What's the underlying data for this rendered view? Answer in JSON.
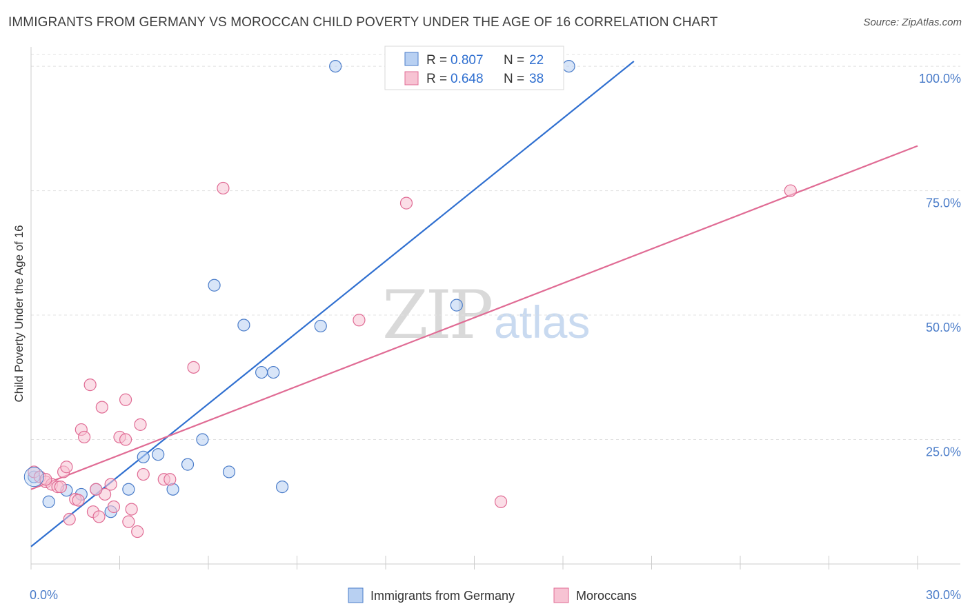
{
  "title": "IMMIGRANTS FROM GERMANY VS MOROCCAN CHILD POVERTY UNDER THE AGE OF 16 CORRELATION CHART",
  "source": "Source: ZipAtlas.com",
  "watermark": {
    "zip": "ZIP",
    "atlas": "atlas"
  },
  "colors": {
    "blue": "#4a7cc9",
    "blue_fill": "#b8d0f2",
    "blue_line": "#2f6fd0",
    "pink": "#e06b94",
    "pink_fill": "#f7c3d3",
    "grid": "#e1e1e1"
  },
  "chart_data": {
    "type": "scatter",
    "title": "IMMIGRANTS FROM GERMANY VS MOROCCAN CHILD POVERTY UNDER THE AGE OF 16 CORRELATION CHART",
    "xlabel": "",
    "ylabel": "Child Poverty Under the Age of 16",
    "xlim": [
      0,
      30
    ],
    "ylim": [
      0,
      105
    ],
    "x_tick_labels": [
      "0.0%",
      "30.0%"
    ],
    "y_ticks": [
      25,
      50,
      75,
      100
    ],
    "y_tick_labels": [
      "25.0%",
      "50.0%",
      "75.0%",
      "100.0%"
    ],
    "grid": true,
    "legend_position": "top-center",
    "legend": [
      {
        "r_label": "R = ",
        "r": "0.807",
        "n_label": "N = ",
        "n": "22"
      },
      {
        "r_label": "R = ",
        "r": "0.648",
        "n_label": "N = ",
        "n": "38"
      }
    ],
    "series": [
      {
        "name": "Immigrants from Germany",
        "color": "#4a7cc9",
        "trend": {
          "x0": 0,
          "y0": 3.5,
          "x1": 20.4,
          "y1": 101
        },
        "points": [
          [
            0.1,
            17.5
          ],
          [
            0.6,
            12.5
          ],
          [
            1.2,
            14.8
          ],
          [
            1.7,
            14.0
          ],
          [
            2.2,
            15.0
          ],
          [
            2.7,
            10.5
          ],
          [
            3.3,
            15.0
          ],
          [
            3.8,
            21.5
          ],
          [
            4.3,
            22.0
          ],
          [
            4.8,
            15.0
          ],
          [
            5.3,
            20.0
          ],
          [
            5.8,
            25.0
          ],
          [
            6.2,
            56.0
          ],
          [
            6.7,
            18.5
          ],
          [
            7.2,
            48.0
          ],
          [
            7.8,
            38.5
          ],
          [
            8.2,
            38.5
          ],
          [
            8.5,
            15.5
          ],
          [
            9.8,
            47.8
          ],
          [
            10.3,
            100.0
          ],
          [
            14.4,
            52.0
          ],
          [
            18.2,
            100.0
          ]
        ]
      },
      {
        "name": "Moroccans",
        "color": "#e06b94",
        "trend": {
          "x0": 0,
          "y0": 15.0,
          "x1": 30,
          "y1": 84.0
        },
        "points": [
          [
            0.1,
            18.5
          ],
          [
            0.3,
            17.5
          ],
          [
            0.5,
            16.5
          ],
          [
            0.7,
            16.0
          ],
          [
            0.9,
            15.5
          ],
          [
            1.1,
            18.5
          ],
          [
            1.2,
            19.5
          ],
          [
            1.3,
            9.0
          ],
          [
            1.5,
            13.0
          ],
          [
            1.6,
            12.8
          ],
          [
            1.7,
            27.0
          ],
          [
            1.8,
            25.5
          ],
          [
            2.0,
            36.0
          ],
          [
            2.1,
            10.5
          ],
          [
            2.3,
            9.5
          ],
          [
            2.4,
            31.5
          ],
          [
            2.5,
            14.0
          ],
          [
            2.7,
            16.0
          ],
          [
            2.8,
            11.5
          ],
          [
            3.0,
            25.5
          ],
          [
            3.2,
            33.0
          ],
          [
            3.2,
            25.0
          ],
          [
            3.3,
            8.5
          ],
          [
            3.4,
            11.0
          ],
          [
            3.6,
            6.5
          ],
          [
            3.7,
            28.0
          ],
          [
            3.8,
            18.0
          ],
          [
            4.5,
            17.0
          ],
          [
            4.7,
            17.0
          ],
          [
            5.5,
            39.5
          ],
          [
            6.5,
            75.5
          ],
          [
            11.1,
            49.0
          ],
          [
            12.7,
            72.5
          ],
          [
            15.9,
            12.5
          ],
          [
            25.7,
            75.0
          ],
          [
            0.5,
            17.0
          ],
          [
            1.0,
            15.5
          ],
          [
            2.2,
            15.0
          ]
        ]
      }
    ]
  }
}
